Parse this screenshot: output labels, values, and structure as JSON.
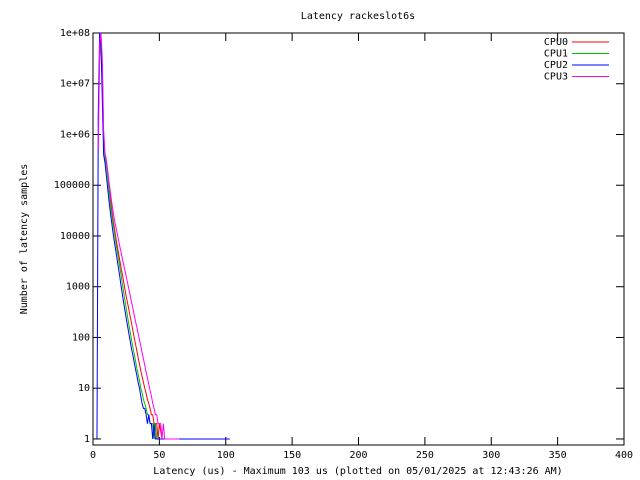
{
  "chart_data": {
    "type": "line",
    "title": "Latency rackeslot6s",
    "x_label": "Latency (us) - Maximum 103 us (plotted on 05/01/2025 at 12:43:26 AM)",
    "y_label": "Number of latency samples",
    "log_y": true,
    "xlim": [
      0,
      400
    ],
    "xticks": [
      0,
      50,
      100,
      150,
      200,
      250,
      300,
      350,
      400
    ],
    "ylim": [
      0.76,
      100000000
    ],
    "yticks": [
      1,
      10,
      100,
      1000,
      10000,
      100000,
      {
        "value": 1000000,
        "label": "1e+06"
      },
      {
        "value": 10000000,
        "label": "1e+07"
      },
      {
        "value": 100000000,
        "label": "1e+08"
      }
    ],
    "legend": "top-right",
    "series": [
      {
        "name": "CPU0",
        "color": "#ff0000",
        "x": [
          4,
          5,
          6,
          7,
          8,
          9,
          10,
          11,
          12,
          13,
          14,
          15,
          16,
          17,
          18,
          19,
          20,
          21,
          22,
          23,
          24,
          25,
          26,
          27,
          28,
          29,
          30,
          31,
          32,
          33,
          34,
          35,
          36,
          37,
          38,
          39,
          40,
          41,
          42,
          43,
          44,
          45,
          46,
          47,
          48,
          49,
          50,
          52,
          54,
          57,
          60,
          63
        ],
        "values": [
          1500000,
          30000000,
          90000000,
          20000000,
          1000000,
          400000,
          300000,
          180000,
          100000,
          60000,
          35000,
          22000,
          15000,
          10000,
          7000,
          5000,
          3500,
          2500,
          1800,
          1300,
          900,
          650,
          480,
          360,
          260,
          190,
          140,
          100,
          75,
          55,
          40,
          30,
          22,
          17,
          13,
          10,
          8,
          6,
          5,
          4,
          3,
          3,
          2,
          2,
          2,
          1,
          2,
          1,
          1,
          1,
          1,
          1
        ]
      },
      {
        "name": "CPU1",
        "color": "#00c000",
        "x": [
          4,
          5,
          6,
          7,
          8,
          9,
          10,
          11,
          12,
          13,
          14,
          15,
          16,
          17,
          18,
          19,
          20,
          21,
          22,
          23,
          24,
          25,
          26,
          27,
          28,
          29,
          30,
          31,
          32,
          33,
          34,
          35,
          36,
          37,
          38,
          39,
          40,
          41,
          42,
          43,
          44,
          45,
          46,
          47,
          48,
          50,
          55,
          60
        ],
        "values": [
          2000000,
          40000000,
          80000000,
          15000000,
          800000,
          350000,
          250000,
          150000,
          80000,
          45000,
          28000,
          18000,
          12000,
          8000,
          5500,
          3800,
          2600,
          1800,
          1200,
          800,
          550,
          380,
          260,
          180,
          130,
          90,
          65,
          48,
          35,
          25,
          19,
          14,
          10,
          8,
          6,
          5,
          4,
          3,
          3,
          2,
          2,
          2,
          1,
          2,
          1,
          1,
          1,
          1
        ]
      },
      {
        "name": "CPU2",
        "color": "#0000ff",
        "x": [
          3,
          4,
          5,
          6,
          7,
          8,
          9,
          10,
          11,
          12,
          13,
          14,
          15,
          16,
          17,
          18,
          19,
          20,
          21,
          22,
          23,
          24,
          25,
          26,
          27,
          28,
          29,
          30,
          31,
          32,
          33,
          34,
          35,
          36,
          37,
          38,
          39,
          40,
          41,
          42,
          43,
          44,
          45,
          46,
          47,
          48,
          52,
          56,
          62,
          70,
          90,
          103
        ],
        "values": [
          1,
          3000000,
          100000000,
          60000000,
          5000000,
          400000,
          280000,
          160000,
          90000,
          50000,
          30000,
          19000,
          12000,
          8000,
          5500,
          3700,
          2500,
          1700,
          1100,
          750,
          500,
          350,
          240,
          170,
          120,
          85,
          60,
          45,
          33,
          24,
          18,
          13,
          10,
          7,
          5,
          4,
          4,
          3,
          2,
          3,
          2,
          2,
          1,
          2,
          1,
          1,
          1,
          1,
          1,
          1,
          1,
          1
        ]
      },
      {
        "name": "CPU3",
        "color": "#ff00ff",
        "x": [
          4,
          5,
          6,
          7,
          8,
          9,
          10,
          11,
          12,
          13,
          14,
          15,
          16,
          17,
          18,
          19,
          20,
          21,
          22,
          23,
          24,
          25,
          26,
          27,
          28,
          29,
          30,
          31,
          32,
          33,
          34,
          35,
          36,
          37,
          38,
          39,
          40,
          41,
          42,
          43,
          44,
          45,
          46,
          47,
          48,
          49,
          50,
          51,
          52,
          53,
          54,
          55,
          56,
          60,
          65
        ],
        "values": [
          500000,
          60000000,
          100000000,
          30000000,
          1200000,
          450000,
          320000,
          200000,
          120000,
          75000,
          48000,
          32000,
          22000,
          16000,
          12000,
          9000,
          6500,
          5000,
          3700,
          2800,
          2100,
          1600,
          1200,
          900,
          680,
          500,
          380,
          280,
          210,
          160,
          120,
          90,
          68,
          50,
          38,
          28,
          21,
          16,
          12,
          9,
          7,
          5,
          4,
          3,
          3,
          2,
          2,
          2,
          1,
          2,
          1,
          1,
          1,
          1,
          1
        ]
      }
    ]
  }
}
